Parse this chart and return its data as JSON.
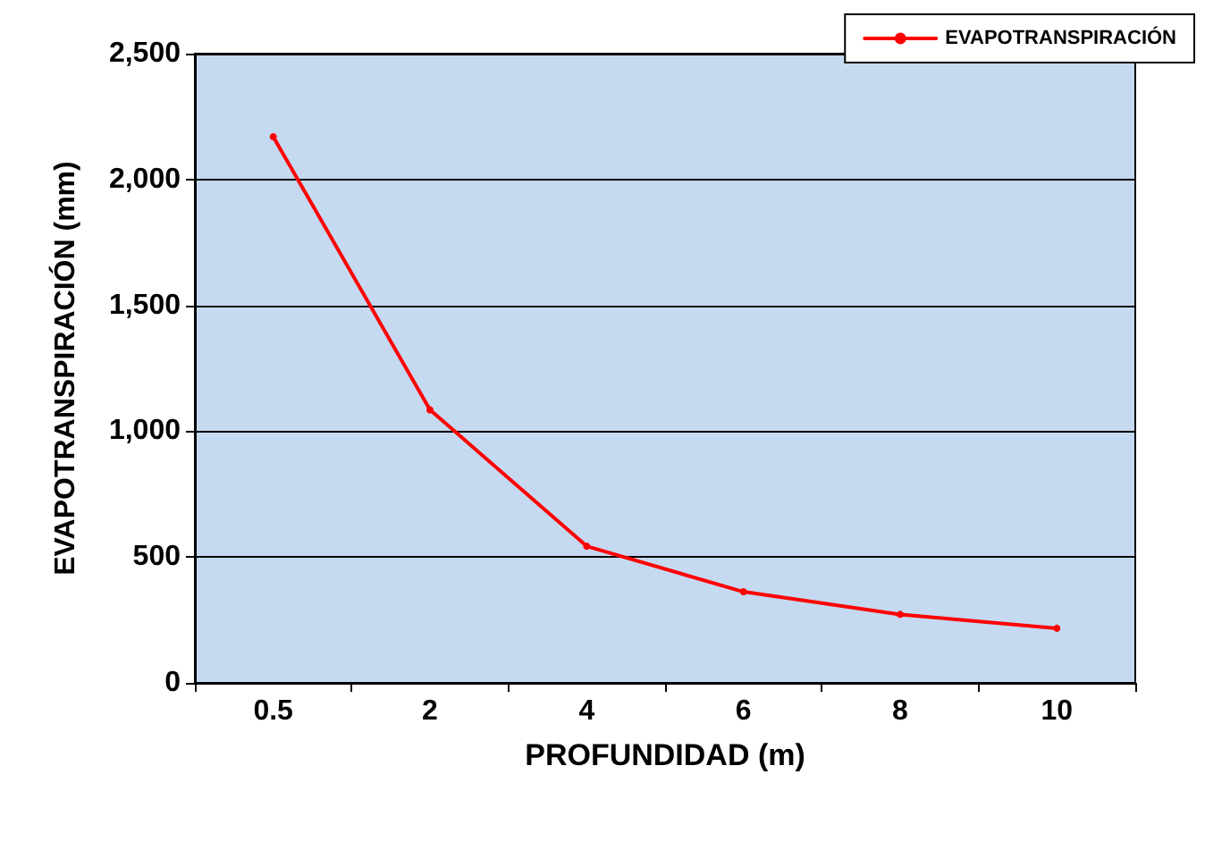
{
  "chart_data": {
    "type": "line",
    "xlabel": "PROFUNDIDAD (m)",
    "ylabel": "EVAPOTRANSPIRACIÓN (mm)",
    "categories": [
      "0.5",
      "2",
      "4",
      "6",
      "8",
      "10"
    ],
    "series": [
      {
        "name": "EVAPOTRANSPIRACIÓN",
        "color": "#ff0000",
        "values": [
          2170,
          1085,
          543,
          362,
          272,
          217
        ]
      }
    ],
    "ylim": [
      0,
      2500
    ],
    "yticks": [
      {
        "value": 0,
        "label": "0"
      },
      {
        "value": 500,
        "label": "500"
      },
      {
        "value": 1000,
        "label": "1,000"
      },
      {
        "value": 1500,
        "label": "1,500"
      },
      {
        "value": 2000,
        "label": "2,000"
      },
      {
        "value": 2500,
        "label": "2,500"
      }
    ],
    "grid": "y",
    "legend": "top right",
    "marker": "circle",
    "line_style": "solid"
  }
}
